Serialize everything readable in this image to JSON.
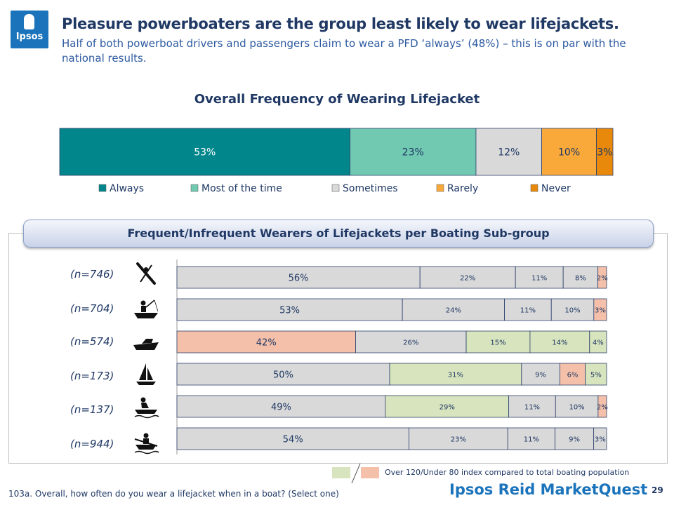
{
  "header": {
    "logo_text": "Ipsos",
    "title": "Pleasure powerboaters are the group least likely to wear lifejackets.",
    "subtitle": "Half of both powerboat drivers and passengers claim to wear a PFD ‘always’ (48%) – this is on par with the national results."
  },
  "colors": {
    "always": "#00868b",
    "most": "#72c9b2",
    "sometimes": "#d9d9d9",
    "rarely": "#f9a93a",
    "never": "#e8890c",
    "high_index": "#d7e4bd",
    "low_index": "#f4c0aa",
    "neutral": "#d9d9d9"
  },
  "legend_note": {
    "text": "Over 120/Under 80 index compared to total boating population"
  },
  "footnote": "103a. Overall, how often do you wear a lifejacket when in a boat? (Select one)",
  "brand": "Ipsos Reid MarketQuest",
  "page_number": "29",
  "chart_data": [
    {
      "type": "bar",
      "orientation": "horizontal-stacked",
      "title": "Overall Frequency of Wearing Lifejacket",
      "legend_position": "bottom",
      "series": [
        {
          "name": "Always",
          "value": 53,
          "label": "53%",
          "color": "#00868b"
        },
        {
          "name": "Most of the time",
          "value": 23,
          "label": "23%",
          "color": "#72c9b2"
        },
        {
          "name": "Sometimes",
          "value": 12,
          "label": "12%",
          "color": "#d9d9d9"
        },
        {
          "name": "Rarely",
          "value": 10,
          "label": "10%",
          "color": "#f9a93a"
        },
        {
          "name": "Never",
          "value": 3,
          "label": "3%",
          "color": "#e8890c"
        }
      ]
    },
    {
      "type": "bar",
      "orientation": "horizontal-stacked",
      "title": "Frequent/Infrequent Wearers of Lifejackets per Boating Sub-group",
      "categories": [
        "(n=746)",
        "(n=704)",
        "(n=574)",
        "(n=173)",
        "(n=137)",
        "(n=944)"
      ],
      "icons": [
        "kayak-icon",
        "fishing-boat-icon",
        "powerboat-icon",
        "sailboat-icon",
        "personal-watercraft-icon",
        "rowboat-icon"
      ],
      "rows": [
        {
          "values": [
            56,
            22,
            11,
            8,
            2
          ],
          "labels": [
            "56%",
            "22%",
            "11%",
            "8%",
            "2%"
          ],
          "index": [
            "neutral",
            "neutral",
            "neutral",
            "neutral",
            "low"
          ]
        },
        {
          "values": [
            53,
            24,
            11,
            10,
            3
          ],
          "labels": [
            "53%",
            "24%",
            "11%",
            "10%",
            "3%"
          ],
          "index": [
            "neutral",
            "neutral",
            "neutral",
            "neutral",
            "low"
          ]
        },
        {
          "values": [
            42,
            26,
            15,
            14,
            4
          ],
          "labels": [
            "42%",
            "26%",
            "15%",
            "14%",
            "4%"
          ],
          "index": [
            "low",
            "neutral",
            "high",
            "high",
            "high"
          ]
        },
        {
          "values": [
            50,
            31,
            9,
            6,
            5
          ],
          "labels": [
            "50%",
            "31%",
            "9%",
            "6%",
            "5%"
          ],
          "index": [
            "neutral",
            "high",
            "neutral",
            "low",
            "high"
          ]
        },
        {
          "values": [
            49,
            29,
            11,
            10,
            2
          ],
          "labels": [
            "49%",
            "29%",
            "11%",
            "10%",
            "2%"
          ],
          "index": [
            "neutral",
            "high",
            "neutral",
            "neutral",
            "low"
          ]
        },
        {
          "values": [
            54,
            23,
            11,
            9,
            3
          ],
          "labels": [
            "54%",
            "23%",
            "11%",
            "9%",
            "3%"
          ],
          "index": [
            "neutral",
            "neutral",
            "neutral",
            "neutral",
            "neutral"
          ]
        }
      ]
    }
  ]
}
